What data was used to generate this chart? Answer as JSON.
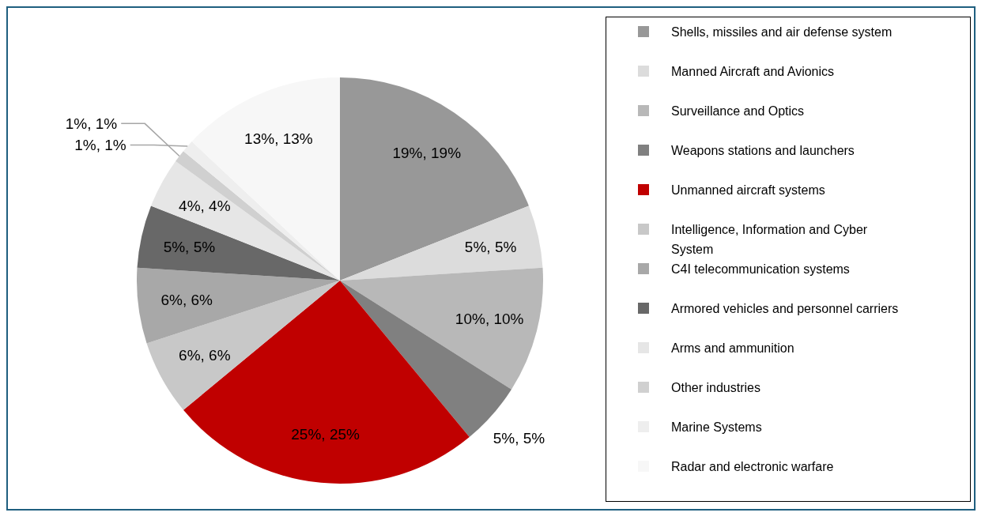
{
  "chart_data": {
    "type": "pie",
    "categories": [
      "Shells, missiles and air defense system",
      "Manned Aircraft and Avionics",
      "Surveillance and Optics",
      "Weapons stations and launchers",
      "Unmanned aircraft systems",
      "Intelligence, Information and Cyber System",
      "C4I telecommunication systems",
      "Armored vehicles and personnel carriers",
      "Arms and ammunition",
      "Other industries",
      "Marine Systems",
      "Radar and electronic warfare"
    ],
    "values": [
      19,
      5,
      10,
      5,
      25,
      6,
      6,
      5,
      4,
      1,
      1,
      13
    ],
    "colors": [
      "#989898",
      "#dcdcdc",
      "#b8b8b8",
      "#808080",
      "#c00000",
      "#c8c8c8",
      "#a8a8a8",
      "#686868",
      "#e6e6e6",
      "#d0d0d0",
      "#eeeeee",
      "#f7f7f7"
    ],
    "value_labels": [
      "19%, 19%",
      "5%, 5%",
      "10%, 10%",
      "5%, 5%",
      "25%, 25%",
      "6%, 6%",
      "6%, 6%",
      "5%, 5%",
      "4%, 4%",
      "1%, 1%",
      "1%, 1%",
      "13%, 13%"
    ],
    "legend": "right"
  }
}
